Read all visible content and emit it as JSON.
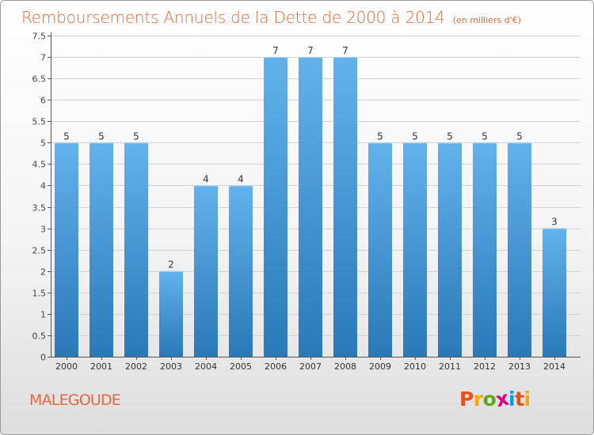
{
  "chart_data": {
    "type": "bar",
    "title": "Remboursements Annuels de la Dette de 2000 à 2014",
    "subtitle": "(en milliers d'€)",
    "categories": [
      "2000",
      "2001",
      "2002",
      "2003",
      "2004",
      "2005",
      "2006",
      "2007",
      "2008",
      "2009",
      "2010",
      "2011",
      "2012",
      "2013",
      "2014"
    ],
    "values": [
      5,
      5,
      5,
      2,
      4,
      4,
      7,
      7,
      7,
      5,
      5,
      5,
      5,
      5,
      3
    ],
    "ylim": [
      0,
      7.5
    ],
    "yticks": [
      "0",
      "0.5",
      "1",
      "1.5",
      "2",
      "2.5",
      "3",
      "3.5",
      "4",
      "4.5",
      "5",
      "5.5",
      "6",
      "6.5",
      "7",
      "7.5"
    ],
    "grid": "horizontal",
    "bar_color": "#3b8ed0",
    "title_color": "#e5683b"
  },
  "footer": {
    "commune": "MALEGOUDE",
    "logo_letters": [
      "P",
      "r",
      "o",
      "x",
      "i",
      "t",
      "i"
    ],
    "logo_colors": [
      "#e94e1b",
      "#f7a600",
      "#56aa1c",
      "#e6007e",
      "#009fe3",
      "#e94e1b",
      "#f7a600"
    ]
  }
}
